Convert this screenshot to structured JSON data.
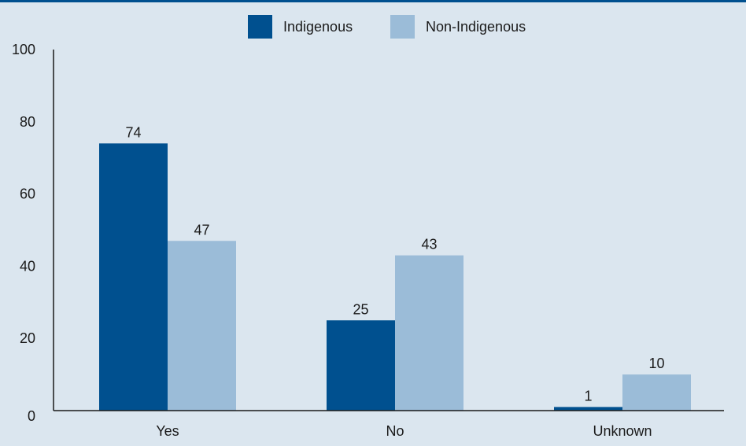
{
  "chart_data": {
    "type": "bar",
    "title": "",
    "xlabel": "",
    "ylabel": "",
    "categories": [
      "Yes",
      "No",
      "Unknown"
    ],
    "series": [
      {
        "name": "Indigenous",
        "values": [
          74,
          25,
          1
        ],
        "color": "#00508f"
      },
      {
        "name": "Non-Indigenous",
        "values": [
          47,
          43,
          10
        ],
        "color": "#9bbcd8"
      }
    ],
    "ylim": [
      0,
      100
    ],
    "yticks": [
      0,
      20,
      40,
      60,
      80,
      100
    ],
    "data_labels": true,
    "grid": false,
    "legend_position": "top-center"
  },
  "colors": {
    "background": "#dbe6ef",
    "top_rule": "#00508f",
    "axis": "#1a1a1a"
  }
}
